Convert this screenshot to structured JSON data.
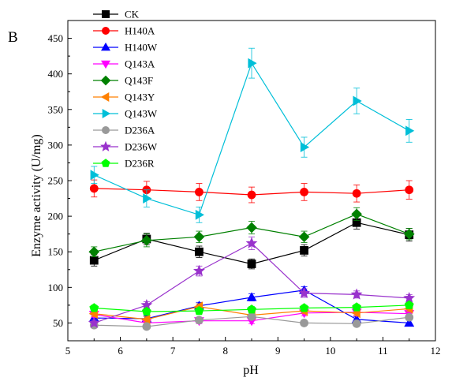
{
  "chart_data": {
    "type": "line",
    "panel_label": "B",
    "xlabel": "pH",
    "ylabel": "Enzyme activity (U/mg)",
    "xlim": [
      5,
      12
    ],
    "ylim": [
      25,
      475
    ],
    "xticks": [
      5,
      6,
      7,
      8,
      9,
      10,
      11,
      12
    ],
    "yticks": [
      50,
      100,
      150,
      200,
      250,
      300,
      350,
      400,
      450
    ],
    "x": [
      5.5,
      6.5,
      7.5,
      8.5,
      9.5,
      10.5,
      11.5
    ],
    "legend_position": "top-left",
    "error_bars": true,
    "series": [
      {
        "name": "CK",
        "color": "#000000",
        "marker": "square",
        "values": [
          138,
          168,
          150,
          133,
          152,
          191,
          174
        ],
        "errors": [
          8,
          8,
          8,
          7,
          8,
          9,
          9
        ]
      },
      {
        "name": "H140A",
        "color": "#ff0000",
        "marker": "circle",
        "values": [
          239,
          237,
          234,
          230,
          234,
          232,
          237
        ],
        "errors": [
          12,
          12,
          12,
          11,
          12,
          12,
          13
        ]
      },
      {
        "name": "H140W",
        "color": "#0000ff",
        "marker": "triangle-up",
        "values": [
          57,
          56,
          74,
          86,
          96,
          55,
          50
        ],
        "errors": [
          4,
          4,
          5,
          5,
          5,
          4,
          4
        ]
      },
      {
        "name": "Q143A",
        "color": "#ff00ff",
        "marker": "triangle-down",
        "values": [
          62,
          50,
          53,
          53,
          64,
          65,
          63
        ],
        "errors": [
          4,
          4,
          4,
          4,
          4,
          4,
          4
        ]
      },
      {
        "name": "Q143F",
        "color": "#008000",
        "marker": "diamond",
        "values": [
          150,
          166,
          171,
          184,
          171,
          203,
          175
        ],
        "errors": [
          7,
          9,
          8,
          9,
          8,
          9,
          8
        ]
      },
      {
        "name": "Q143Y",
        "color": "#ff8000",
        "marker": "triangle-left",
        "values": [
          63,
          55,
          73,
          61,
          67,
          64,
          70
        ],
        "errors": [
          4,
          4,
          4,
          4,
          4,
          4,
          4
        ]
      },
      {
        "name": "Q143W",
        "color": "#00bfd8",
        "marker": "triangle-right",
        "values": [
          258,
          225,
          202,
          415,
          297,
          362,
          320
        ],
        "errors": [
          12,
          12,
          11,
          21,
          14,
          18,
          16
        ]
      },
      {
        "name": "D236A",
        "color": "#999999",
        "marker": "circle",
        "values": [
          47,
          45,
          54,
          59,
          50,
          49,
          58
        ],
        "errors": [
          3,
          3,
          3,
          3,
          3,
          3,
          3
        ]
      },
      {
        "name": "D236W",
        "color": "#9932cc",
        "marker": "star",
        "values": [
          50,
          75,
          123,
          162,
          92,
          90,
          85
        ],
        "errors": [
          4,
          5,
          7,
          9,
          6,
          5,
          5
        ]
      },
      {
        "name": "D236R",
        "color": "#00ff00",
        "marker": "pentagon",
        "values": [
          71,
          66,
          67,
          69,
          71,
          72,
          75
        ],
        "errors": [
          4,
          4,
          4,
          4,
          4,
          4,
          4
        ]
      }
    ]
  }
}
